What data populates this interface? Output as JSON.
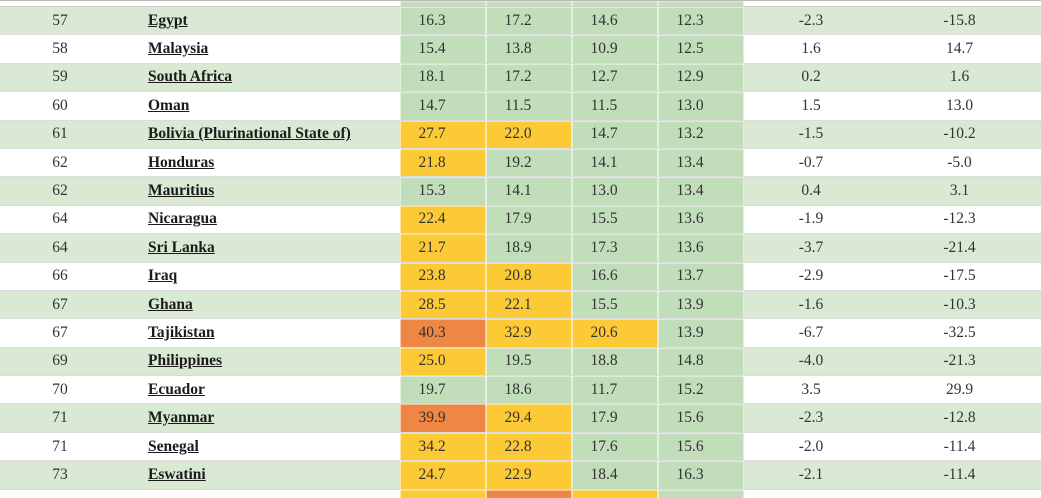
{
  "colors": {
    "stripe_green": "#d9e9d3",
    "band_green": "#c2ddb9",
    "serious_yellow": "#fcc937",
    "alarming_orange": "#ed8743",
    "row_border": "#dcdcdc",
    "text": "#333333",
    "link_text": "#1b1b1b"
  },
  "table": {
    "rows": [
      {
        "rank": "57",
        "country": "Egypt",
        "scores": [
          {
            "value": "16.3",
            "level": "none"
          },
          {
            "value": "17.2",
            "level": "none"
          },
          {
            "value": "14.6",
            "level": "none"
          },
          {
            "value": "12.3",
            "level": "none"
          }
        ],
        "abs_change": "-2.3",
        "pct_change": "-15.8"
      },
      {
        "rank": "58",
        "country": "Malaysia",
        "scores": [
          {
            "value": "15.4",
            "level": "none"
          },
          {
            "value": "13.8",
            "level": "none"
          },
          {
            "value": "10.9",
            "level": "none"
          },
          {
            "value": "12.5",
            "level": "none"
          }
        ],
        "abs_change": "1.6",
        "pct_change": "14.7"
      },
      {
        "rank": "59",
        "country": "South Africa",
        "scores": [
          {
            "value": "18.1",
            "level": "none"
          },
          {
            "value": "17.2",
            "level": "none"
          },
          {
            "value": "12.7",
            "level": "none"
          },
          {
            "value": "12.9",
            "level": "none"
          }
        ],
        "abs_change": "0.2",
        "pct_change": "1.6"
      },
      {
        "rank": "60",
        "country": "Oman",
        "scores": [
          {
            "value": "14.7",
            "level": "none"
          },
          {
            "value": "11.5",
            "level": "none"
          },
          {
            "value": "11.5",
            "level": "none"
          },
          {
            "value": "13.0",
            "level": "none"
          }
        ],
        "abs_change": "1.5",
        "pct_change": "13.0"
      },
      {
        "rank": "61",
        "country": "Bolivia (Plurinational State of)",
        "scores": [
          {
            "value": "27.7",
            "level": "serious"
          },
          {
            "value": "22.0",
            "level": "serious"
          },
          {
            "value": "14.7",
            "level": "none"
          },
          {
            "value": "13.2",
            "level": "none"
          }
        ],
        "abs_change": "-1.5",
        "pct_change": "-10.2"
      },
      {
        "rank": "62",
        "country": "Honduras",
        "scores": [
          {
            "value": "21.8",
            "level": "serious"
          },
          {
            "value": "19.2",
            "level": "none"
          },
          {
            "value": "14.1",
            "level": "none"
          },
          {
            "value": "13.4",
            "level": "none"
          }
        ],
        "abs_change": "-0.7",
        "pct_change": "-5.0"
      },
      {
        "rank": "62",
        "country": "Mauritius",
        "scores": [
          {
            "value": "15.3",
            "level": "none"
          },
          {
            "value": "14.1",
            "level": "none"
          },
          {
            "value": "13.0",
            "level": "none"
          },
          {
            "value": "13.4",
            "level": "none"
          }
        ],
        "abs_change": "0.4",
        "pct_change": "3.1"
      },
      {
        "rank": "64",
        "country": "Nicaragua",
        "scores": [
          {
            "value": "22.4",
            "level": "serious"
          },
          {
            "value": "17.9",
            "level": "none"
          },
          {
            "value": "15.5",
            "level": "none"
          },
          {
            "value": "13.6",
            "level": "none"
          }
        ],
        "abs_change": "-1.9",
        "pct_change": "-12.3"
      },
      {
        "rank": "64",
        "country": "Sri Lanka",
        "scores": [
          {
            "value": "21.7",
            "level": "serious"
          },
          {
            "value": "18.9",
            "level": "none"
          },
          {
            "value": "17.3",
            "level": "none"
          },
          {
            "value": "13.6",
            "level": "none"
          }
        ],
        "abs_change": "-3.7",
        "pct_change": "-21.4"
      },
      {
        "rank": "66",
        "country": "Iraq",
        "scores": [
          {
            "value": "23.8",
            "level": "serious"
          },
          {
            "value": "20.8",
            "level": "serious"
          },
          {
            "value": "16.6",
            "level": "none"
          },
          {
            "value": "13.7",
            "level": "none"
          }
        ],
        "abs_change": "-2.9",
        "pct_change": "-17.5"
      },
      {
        "rank": "67",
        "country": "Ghana",
        "scores": [
          {
            "value": "28.5",
            "level": "serious"
          },
          {
            "value": "22.1",
            "level": "serious"
          },
          {
            "value": "15.5",
            "level": "none"
          },
          {
            "value": "13.9",
            "level": "none"
          }
        ],
        "abs_change": "-1.6",
        "pct_change": "-10.3"
      },
      {
        "rank": "67",
        "country": "Tajikistan",
        "scores": [
          {
            "value": "40.3",
            "level": "alarming"
          },
          {
            "value": "32.9",
            "level": "serious"
          },
          {
            "value": "20.6",
            "level": "serious"
          },
          {
            "value": "13.9",
            "level": "none"
          }
        ],
        "abs_change": "-6.7",
        "pct_change": "-32.5"
      },
      {
        "rank": "69",
        "country": "Philippines",
        "scores": [
          {
            "value": "25.0",
            "level": "serious"
          },
          {
            "value": "19.5",
            "level": "none"
          },
          {
            "value": "18.8",
            "level": "none"
          },
          {
            "value": "14.8",
            "level": "none"
          }
        ],
        "abs_change": "-4.0",
        "pct_change": "-21.3"
      },
      {
        "rank": "70",
        "country": "Ecuador",
        "scores": [
          {
            "value": "19.7",
            "level": "none"
          },
          {
            "value": "18.6",
            "level": "none"
          },
          {
            "value": "11.7",
            "level": "none"
          },
          {
            "value": "15.2",
            "level": "none"
          }
        ],
        "abs_change": "3.5",
        "pct_change": "29.9"
      },
      {
        "rank": "71",
        "country": "Myanmar",
        "scores": [
          {
            "value": "39.9",
            "level": "alarming"
          },
          {
            "value": "29.4",
            "level": "serious"
          },
          {
            "value": "17.9",
            "level": "none"
          },
          {
            "value": "15.6",
            "level": "none"
          }
        ],
        "abs_change": "-2.3",
        "pct_change": "-12.8"
      },
      {
        "rank": "71",
        "country": "Senegal",
        "scores": [
          {
            "value": "34.2",
            "level": "serious"
          },
          {
            "value": "22.8",
            "level": "serious"
          },
          {
            "value": "17.6",
            "level": "none"
          },
          {
            "value": "15.6",
            "level": "none"
          }
        ],
        "abs_change": "-2.0",
        "pct_change": "-11.4"
      },
      {
        "rank": "73",
        "country": "Eswatini",
        "scores": [
          {
            "value": "24.7",
            "level": "serious"
          },
          {
            "value": "22.9",
            "level": "serious"
          },
          {
            "value": "18.4",
            "level": "none"
          },
          {
            "value": "16.3",
            "level": "none"
          }
        ],
        "abs_change": "-2.1",
        "pct_change": "-11.4"
      }
    ],
    "top_partial_row": {
      "levels": [
        "none",
        "none",
        "none",
        "none"
      ]
    },
    "bottom_partial_row": {
      "levels": [
        "serious",
        "alarming",
        "serious",
        "none"
      ]
    }
  }
}
